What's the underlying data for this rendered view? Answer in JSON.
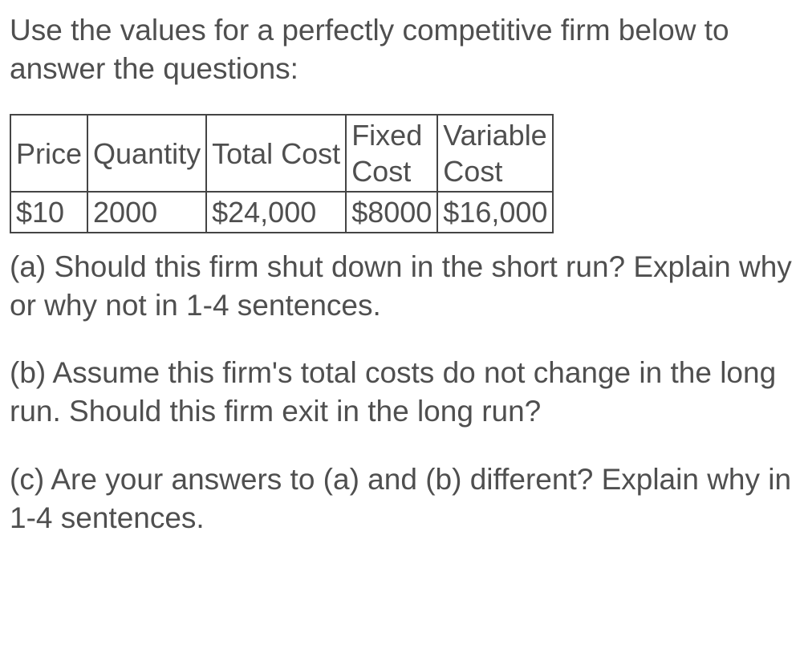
{
  "intro": "Use the values for a perfectly competitive firm below to answer the questions:",
  "table": {
    "columns": [
      "Price",
      "Quantity",
      "Total Cost",
      "Fixed Cost",
      "Variable Cost"
    ],
    "header_html": {
      "fixed_cost": "Fixed<br>Cost",
      "variable_cost": "Variable<br>Cost"
    },
    "rows": [
      [
        "$10",
        "2000",
        "$24,000",
        "$8000",
        "$16,000"
      ]
    ],
    "border_color": "#454545",
    "text_color": "#4f4f4f",
    "font_size": 36
  },
  "questions": {
    "a": "(a) Should this firm shut down in the short run? Explain why or why not in 1-4 sentences.",
    "b": "(b) Assume this firm's total costs do not change in the long run. Should this firm exit in the long run?",
    "c": "(c) Are your answers to (a) and (b) different? Explain why in 1-4 sentences."
  },
  "styling": {
    "body_text_color": "#4f4f4f",
    "background_color": "#ffffff",
    "body_font_size": 37
  }
}
